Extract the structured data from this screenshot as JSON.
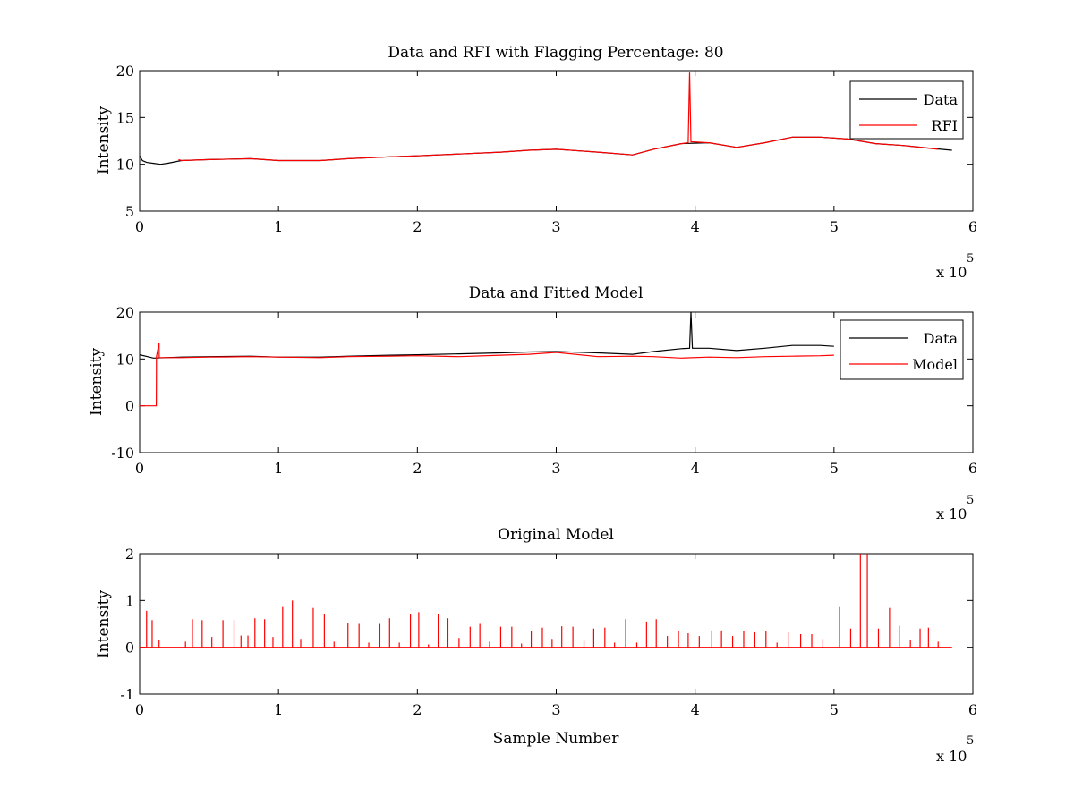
{
  "figure": {
    "background": "#ffffff"
  },
  "chart_data": [
    {
      "type": "line",
      "title": "Data and RFI with Flagging Percentage: 80",
      "xlabel": "",
      "ylabel": "Intensity",
      "xlim": [
        0,
        6
      ],
      "ylim": [
        5,
        20
      ],
      "x_ticks": [
        "0",
        "1",
        "2",
        "3",
        "4",
        "5",
        "6"
      ],
      "y_ticks": [
        "5",
        "10",
        "15",
        "20"
      ],
      "x_exponent_prefix": "x 10",
      "x_exponent_power": "5",
      "legend": {
        "position": "top-right",
        "entries": [
          "Data",
          "RFI"
        ]
      },
      "series": [
        {
          "name": "Data",
          "color": "#000000",
          "x": [
            0,
            0.02,
            0.05,
            0.1,
            0.15,
            0.2,
            0.3,
            0.5,
            0.8,
            1.0,
            1.3,
            1.5,
            1.8,
            2.0,
            2.3,
            2.6,
            2.8,
            3.0,
            3.3,
            3.55,
            3.7,
            3.9,
            4.1,
            4.3,
            4.5,
            4.7,
            4.9,
            5.1,
            5.3,
            5.5,
            5.7,
            5.85
          ],
          "y": [
            10.9,
            10.4,
            10.2,
            10.1,
            10.0,
            10.1,
            10.4,
            10.5,
            10.6,
            10.4,
            10.4,
            10.6,
            10.8,
            10.9,
            11.1,
            11.3,
            11.5,
            11.6,
            11.3,
            11.0,
            11.6,
            12.2,
            12.3,
            11.8,
            12.3,
            12.9,
            12.9,
            12.7,
            12.2,
            12.0,
            11.7,
            11.5
          ]
        },
        {
          "name": "RFI",
          "color": "#ff0000",
          "x": [
            0.28,
            0.3,
            0.5,
            0.8,
            1.0,
            1.3,
            1.5,
            1.8,
            2.0,
            2.3,
            2.6,
            2.8,
            3.0,
            3.3,
            3.55,
            3.7,
            3.9,
            3.95,
            3.96,
            3.97,
            4.1,
            4.3,
            4.5,
            4.7,
            4.9,
            5.1,
            5.3,
            5.5,
            5.75
          ],
          "y": [
            10.5,
            10.4,
            10.5,
            10.6,
            10.4,
            10.4,
            10.6,
            10.8,
            10.9,
            11.1,
            11.3,
            11.5,
            11.6,
            11.3,
            11.0,
            11.6,
            12.2,
            12.3,
            19.8,
            12.4,
            12.3,
            11.8,
            12.3,
            12.9,
            12.9,
            12.7,
            12.2,
            12.0,
            11.6
          ]
        }
      ]
    },
    {
      "type": "line",
      "title": "Data and Fitted Model",
      "xlabel": "",
      "ylabel": "Intensity",
      "xlim": [
        0,
        6
      ],
      "ylim": [
        -10,
        20
      ],
      "x_ticks": [
        "0",
        "1",
        "2",
        "3",
        "4",
        "5",
        "6"
      ],
      "y_ticks": [
        "-10",
        "0",
        "10",
        "20"
      ],
      "x_exponent_prefix": "x 10",
      "x_exponent_power": "5",
      "legend": {
        "position": "top-right",
        "entries": [
          "Data",
          "Model"
        ]
      },
      "series": [
        {
          "name": "Data",
          "color": "#000000",
          "x": [
            0,
            0.1,
            0.3,
            0.5,
            0.8,
            1.0,
            1.3,
            1.5,
            1.8,
            2.0,
            2.3,
            2.6,
            2.8,
            3.0,
            3.3,
            3.55,
            3.7,
            3.9,
            3.96,
            3.97,
            3.98,
            4.1,
            4.3,
            4.5,
            4.7,
            4.9,
            5.0
          ],
          "y": [
            10.9,
            10.2,
            10.4,
            10.5,
            10.6,
            10.4,
            10.4,
            10.6,
            10.8,
            10.9,
            11.1,
            11.3,
            11.5,
            11.6,
            11.3,
            11.0,
            11.6,
            12.2,
            12.3,
            20.0,
            12.3,
            12.3,
            11.8,
            12.3,
            12.9,
            12.9,
            12.7
          ]
        },
        {
          "name": "Model",
          "color": "#ff0000",
          "x": [
            0,
            0.12,
            0.121,
            0.14,
            0.141,
            0.3,
            0.5,
            0.8,
            1.0,
            1.3,
            1.5,
            1.8,
            2.0,
            2.3,
            2.6,
            2.8,
            3.0,
            3.3,
            3.55,
            3.7,
            3.9,
            4.1,
            4.3,
            4.5,
            4.7,
            4.9,
            5.0
          ],
          "y": [
            0,
            0,
            10.5,
            13.5,
            10.3,
            10.3,
            10.4,
            10.5,
            10.4,
            10.3,
            10.5,
            10.6,
            10.7,
            10.5,
            10.8,
            11.0,
            11.4,
            10.5,
            10.6,
            10.5,
            10.2,
            10.4,
            10.3,
            10.5,
            10.6,
            10.7,
            10.8
          ]
        }
      ]
    },
    {
      "type": "line",
      "title": "Original Model",
      "xlabel": "Sample Number",
      "ylabel": "Intensity",
      "xlim": [
        0,
        6
      ],
      "ylim": [
        -1,
        2
      ],
      "x_ticks": [
        "0",
        "1",
        "2",
        "3",
        "4",
        "5",
        "6"
      ],
      "y_ticks": [
        "-1",
        "0",
        "1",
        "2"
      ],
      "x_exponent_prefix": "x 10",
      "x_exponent_power": "5",
      "baseline": {
        "x": [
          0,
          5.85
        ],
        "y": 0,
        "color": "#ff0000"
      },
      "spikes": {
        "name": "Model",
        "color": "#ff0000",
        "x": [
          0.05,
          0.09,
          0.14,
          0.33,
          0.38,
          0.45,
          0.52,
          0.6,
          0.68,
          0.73,
          0.78,
          0.83,
          0.9,
          0.96,
          1.03,
          1.1,
          1.16,
          1.25,
          1.33,
          1.4,
          1.5,
          1.58,
          1.65,
          1.73,
          1.8,
          1.87,
          1.95,
          2.01,
          2.08,
          2.15,
          2.22,
          2.3,
          2.38,
          2.45,
          2.52,
          2.6,
          2.68,
          2.75,
          2.82,
          2.9,
          2.97,
          3.04,
          3.12,
          3.2,
          3.27,
          3.35,
          3.42,
          3.5,
          3.58,
          3.65,
          3.72,
          3.8,
          3.88,
          3.95,
          4.03,
          4.12,
          4.19,
          4.27,
          4.35,
          4.43,
          4.51,
          4.59,
          4.67,
          4.76,
          4.84,
          4.92,
          5.04,
          5.12,
          5.19,
          5.24,
          5.32,
          5.4,
          5.47,
          5.55,
          5.62,
          5.68,
          5.75
        ],
        "y": [
          0.78,
          0.58,
          0.15,
          0.12,
          0.6,
          0.58,
          0.22,
          0.58,
          0.58,
          0.25,
          0.25,
          0.62,
          0.6,
          0.22,
          0.86,
          1.0,
          0.18,
          0.84,
          0.72,
          0.12,
          0.52,
          0.5,
          0.1,
          0.5,
          0.62,
          0.1,
          0.72,
          0.75,
          0.06,
          0.72,
          0.62,
          0.2,
          0.44,
          0.5,
          0.12,
          0.44,
          0.44,
          0.08,
          0.35,
          0.42,
          0.18,
          0.45,
          0.44,
          0.14,
          0.4,
          0.42,
          0.1,
          0.6,
          0.1,
          0.55,
          0.6,
          0.24,
          0.34,
          0.3,
          0.24,
          0.36,
          0.36,
          0.24,
          0.35,
          0.32,
          0.34,
          0.1,
          0.32,
          0.28,
          0.28,
          0.18,
          0.86,
          0.4,
          2.0,
          2.0,
          0.4,
          0.84,
          0.46,
          0.16,
          0.4,
          0.42,
          0.12
        ]
      }
    }
  ]
}
